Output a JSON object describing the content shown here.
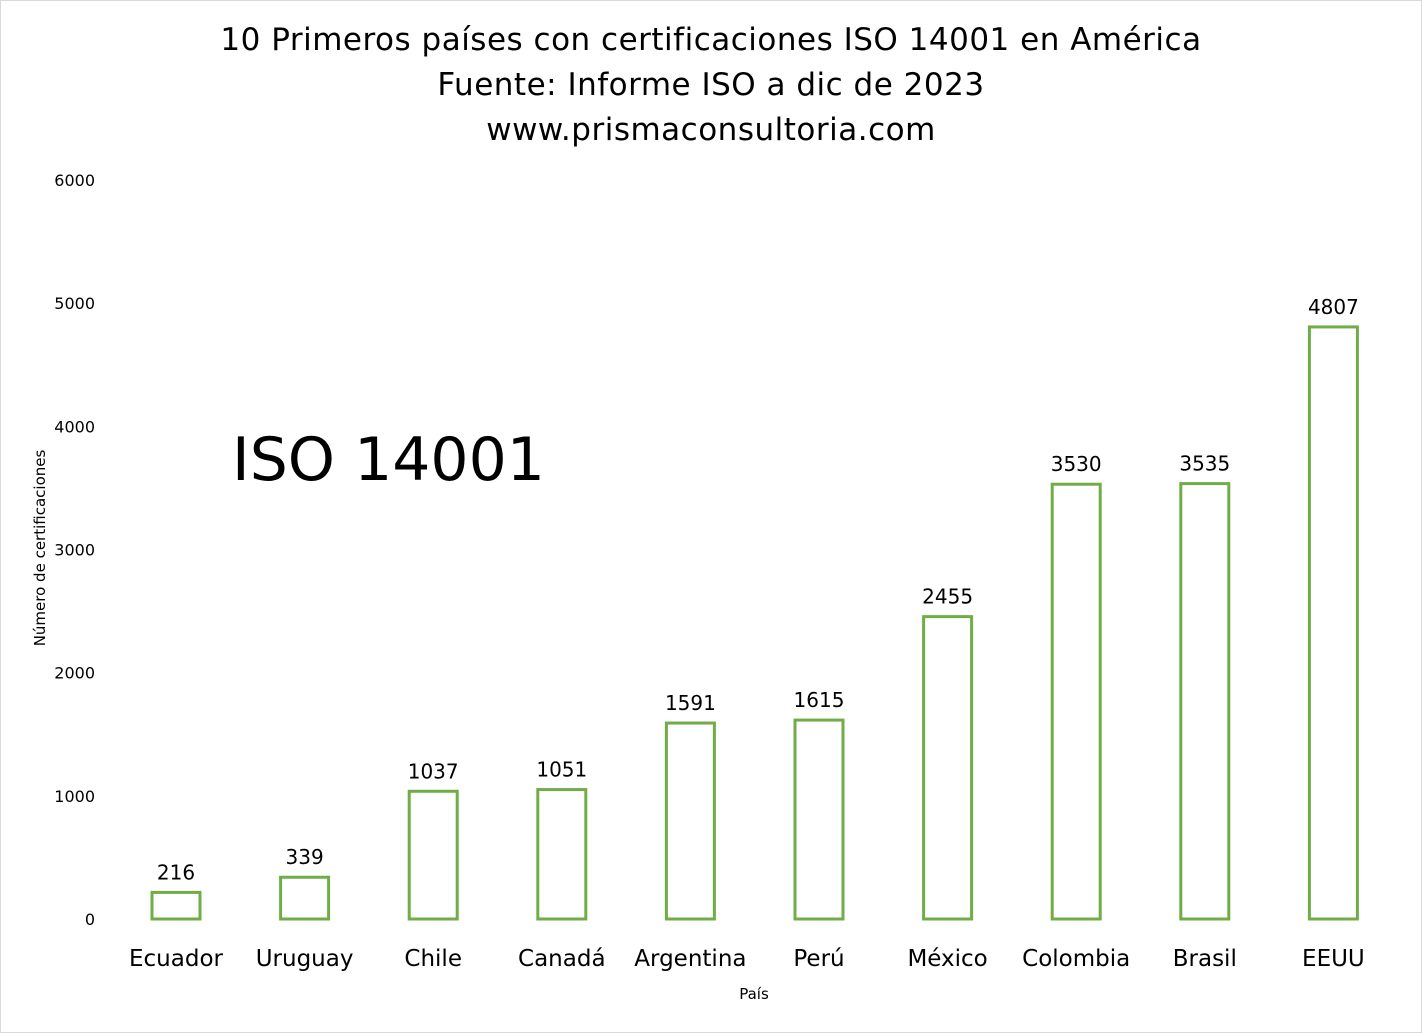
{
  "title_lines": [
    "10 Primeros países con certificaciones ISO 14001 en América",
    "Fuente: Informe ISO a dic de 2023",
    "www.prismaconsultoria.com"
  ],
  "overlay_label": "ISO 14001",
  "chart_data": {
    "type": "bar",
    "title": "10 Primeros países con certificaciones ISO 14001 en América",
    "subtitle": "Fuente: Informe ISO a dic de 2023",
    "xlabel": "País",
    "ylabel": "Número de certificaciones",
    "categories": [
      "Ecuador",
      "Uruguay",
      "Chile",
      "Canadá",
      "Argentina",
      "Perú",
      "México",
      "Colombia",
      "Brasil",
      "EEUU"
    ],
    "values": [
      216,
      339,
      1037,
      1051,
      1591,
      1615,
      2455,
      3530,
      3535,
      4807
    ],
    "ylim": [
      0,
      6000
    ],
    "yticks": [
      0,
      1000,
      2000,
      3000,
      4000,
      5000,
      6000
    ],
    "grid": false,
    "legend": "none",
    "bar_style": "outline",
    "bar_color": "#70ad47"
  }
}
